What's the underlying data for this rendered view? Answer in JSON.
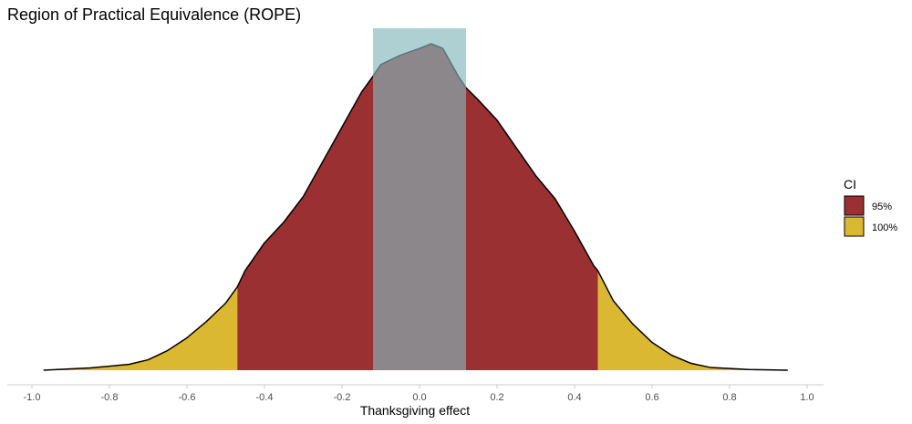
{
  "chart_data": {
    "type": "area",
    "title": "Region of Practical Equivalence (ROPE)",
    "xlabel": "Thanksgiving effect",
    "ylabel": "",
    "xlim": [
      -1.0,
      1.0
    ],
    "xticks": [
      "-1.0",
      "-0.8",
      "-0.6",
      "-0.4",
      "-0.2",
      "0.0",
      "0.2",
      "0.4",
      "0.6",
      "0.8",
      "1.0"
    ],
    "density": {
      "x": [
        -0.97,
        -0.85,
        -0.75,
        -0.7,
        -0.65,
        -0.6,
        -0.55,
        -0.5,
        -0.47,
        -0.45,
        -0.4,
        -0.35,
        -0.3,
        -0.25,
        -0.2,
        -0.15,
        -0.12,
        -0.1,
        -0.05,
        0.0,
        0.03,
        0.06,
        0.1,
        0.12,
        0.15,
        0.2,
        0.25,
        0.3,
        0.35,
        0.4,
        0.45,
        0.46,
        0.5,
        0.55,
        0.6,
        0.65,
        0.7,
        0.75,
        0.85,
        0.95
      ],
      "y": [
        0.0,
        0.01,
        0.025,
        0.045,
        0.085,
        0.14,
        0.21,
        0.29,
        0.36,
        0.43,
        0.55,
        0.64,
        0.75,
        0.9,
        1.05,
        1.2,
        1.27,
        1.32,
        1.36,
        1.39,
        1.41,
        1.39,
        1.27,
        1.22,
        1.17,
        1.08,
        0.96,
        0.84,
        0.74,
        0.6,
        0.45,
        0.43,
        0.3,
        0.2,
        0.12,
        0.065,
        0.03,
        0.012,
        0.003,
        0.0
      ],
      "ymax": 1.41
    },
    "ci_95": [
      -0.47,
      0.46
    ],
    "rope": [
      -0.12,
      0.12
    ],
    "legend": {
      "title": "CI",
      "position": "right",
      "entries": [
        {
          "label": "95%",
          "color": "#9b3032"
        },
        {
          "label": "100%",
          "color": "#dbb832"
        }
      ]
    },
    "colors": {
      "ci95": "#9b3032",
      "ci100": "#dbb832",
      "rope": "#82b7bb",
      "rope_opacity": 0.65,
      "outline": "#000000"
    }
  }
}
